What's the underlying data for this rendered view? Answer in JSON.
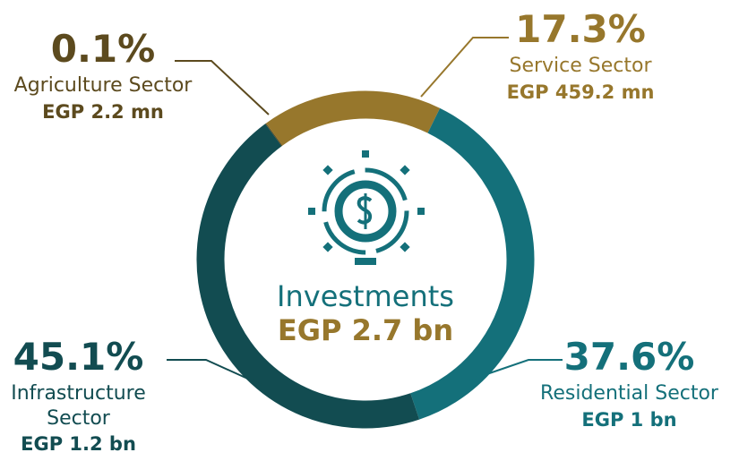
{
  "chart_data": {
    "type": "donut",
    "title": "Investments",
    "subtitle": "EGP 2.7 bn",
    "categories": [
      "Agriculture Sector",
      "Service Sector",
      "Residential Sector",
      "Infrastructure Sector"
    ],
    "values": [
      0.1,
      17.3,
      37.6,
      45.1
    ],
    "value_labels": [
      "0.1%",
      "17.3%",
      "37.6%",
      "45.1%"
    ],
    "amounts": [
      "EGP 2.2 mn",
      "EGP 459.2 mn",
      "EGP 1 bn",
      "EGP 1.2 bn"
    ],
    "colors": [
      "#5c4a1e",
      "#97772c",
      "#14707a",
      "#124c51"
    ]
  }
}
